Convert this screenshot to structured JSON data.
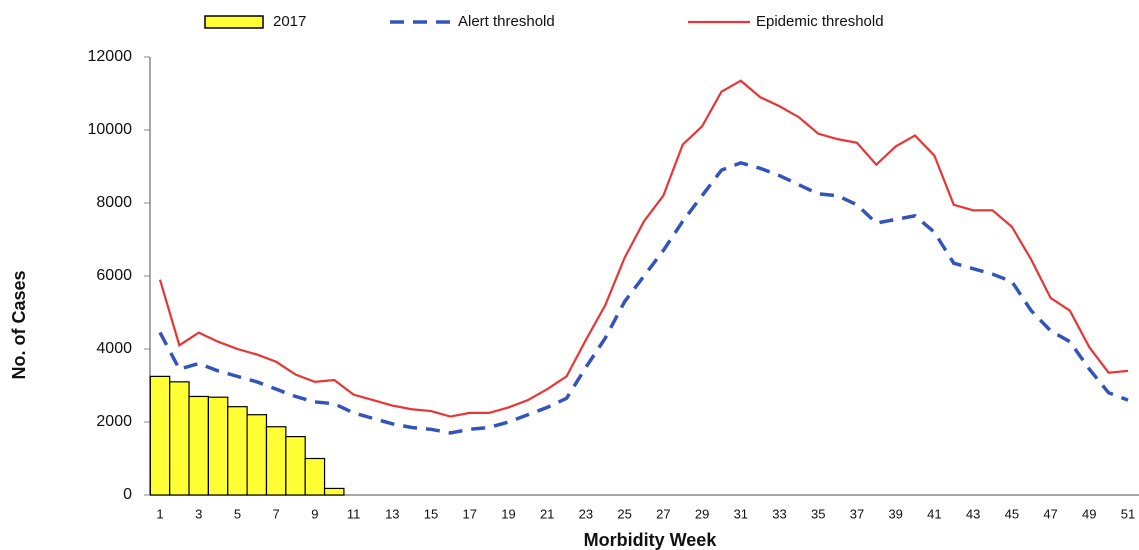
{
  "chart_data": {
    "type": "bar",
    "xlabel": "Morbidity Week",
    "ylabel": "No. of Cases",
    "categories": [
      "1",
      null,
      "3",
      null,
      "5",
      null,
      "7",
      null,
      "9",
      null,
      "11",
      null,
      "13",
      null,
      "15",
      null,
      "17",
      null,
      "19",
      null,
      "21",
      null,
      "23",
      null,
      "25",
      null,
      "27",
      null,
      "29",
      null,
      "31",
      null,
      "33",
      null,
      "35",
      null,
      "37",
      null,
      "39",
      null,
      "41",
      null,
      "43",
      null,
      "45",
      null,
      "47",
      null,
      "49",
      null,
      "51"
    ],
    "series": [
      {
        "name": "2017",
        "type": "bar",
        "color": "#ffff33",
        "values": [
          3250,
          3100,
          2700,
          2680,
          2420,
          2200,
          1870,
          1600,
          1000,
          180,
          null,
          null,
          null,
          null,
          null,
          null,
          null,
          null,
          null,
          null,
          null,
          null,
          null,
          null,
          null,
          null,
          null,
          null,
          null,
          null,
          null,
          null,
          null,
          null,
          null,
          null,
          null,
          null,
          null,
          null,
          null,
          null,
          null,
          null,
          null,
          null,
          null,
          null,
          null,
          null,
          null
        ]
      },
      {
        "name": "Alert threshold",
        "type": "line",
        "dashed": true,
        "color": "#3355bb",
        "values": [
          4450,
          3450,
          3600,
          3400,
          3250,
          3100,
          2900,
          2700,
          2550,
          2500,
          2250,
          2100,
          1950,
          1850,
          1800,
          1700,
          1800,
          1850,
          2000,
          2200,
          2400,
          2650,
          3500,
          4300,
          5300,
          6000,
          6700,
          7500,
          8200,
          8900,
          9100,
          8950,
          8750,
          8500,
          8250,
          8200,
          7950,
          7450,
          7550,
          7650,
          7200,
          6350,
          6200,
          6050,
          5850,
          5050,
          4500,
          4200,
          3450,
          2800,
          2600
        ]
      },
      {
        "name": "Epidemic threshold",
        "type": "line",
        "dashed": false,
        "color": "#e83535",
        "values": [
          5900,
          4100,
          4450,
          4200,
          4000,
          3850,
          3650,
          3300,
          3100,
          3150,
          2750,
          2600,
          2450,
          2350,
          2300,
          2150,
          2250,
          2250,
          2400,
          2600,
          2900,
          3250,
          4250,
          5200,
          6500,
          7500,
          8200,
          9600,
          10100,
          11050,
          11350,
          10900,
          10650,
          10350,
          9900,
          9750,
          9650,
          9050,
          9550,
          9850,
          9300,
          7950,
          7800,
          7800,
          7350,
          6450,
          5400,
          5050,
          4050,
          3350,
          3400
        ]
      }
    ],
    "ylim": [
      0,
      12000
    ],
    "yticks": [
      0,
      2000,
      4000,
      6000,
      8000,
      10000,
      12000
    ],
    "grid": false,
    "legend": "top"
  }
}
